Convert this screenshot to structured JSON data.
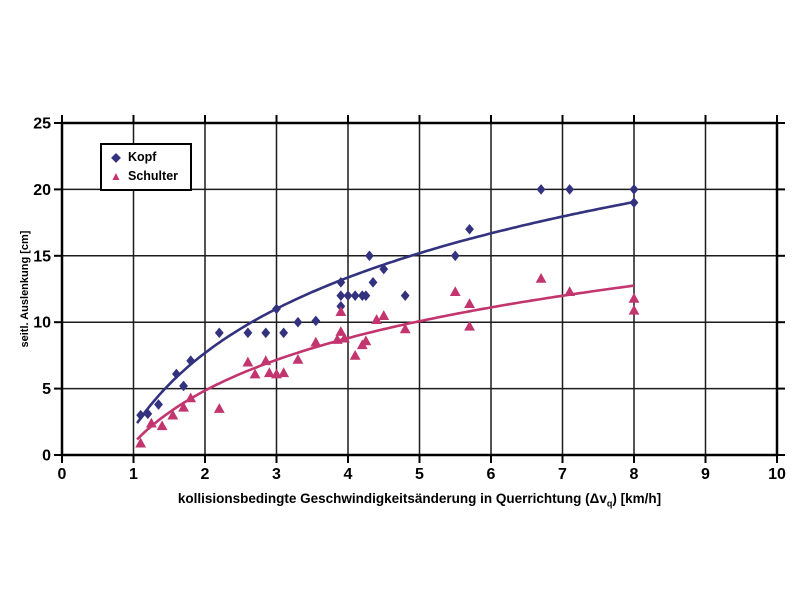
{
  "chart_data": {
    "type": "scatter",
    "title": "",
    "xlabel_prefix": "kollisionsbedingte Geschwindigkeitsänderung in Querrichtung (Δv",
    "xlabel_sub": "q",
    "xlabel_suffix": ") [km/h]",
    "ylabel": "seitl. Auslenkung [cm]",
    "xlim": [
      0,
      10
    ],
    "ylim": [
      0,
      25
    ],
    "x_ticks": [
      0,
      1,
      2,
      3,
      4,
      5,
      6,
      7,
      8,
      9,
      10
    ],
    "y_ticks": [
      0,
      5,
      10,
      15,
      20,
      25
    ],
    "grid": true,
    "grid_color": "#1c1c1c",
    "frame_color": "#000000",
    "legend_position": "top-left",
    "series": [
      {
        "name": "Kopf",
        "marker": "diamond",
        "color": "#32327E",
        "points": [
          [
            1.1,
            3.0
          ],
          [
            1.2,
            3.1
          ],
          [
            1.35,
            3.8
          ],
          [
            1.6,
            6.1
          ],
          [
            1.7,
            5.2
          ],
          [
            1.8,
            7.1
          ],
          [
            2.2,
            9.2
          ],
          [
            2.6,
            9.2
          ],
          [
            2.85,
            9.2
          ],
          [
            3.0,
            11.0
          ],
          [
            3.1,
            9.2
          ],
          [
            3.3,
            10.0
          ],
          [
            3.55,
            10.1
          ],
          [
            3.9,
            13.0
          ],
          [
            3.9,
            12.0
          ],
          [
            3.9,
            11.2
          ],
          [
            4.0,
            12.0
          ],
          [
            4.1,
            12.0
          ],
          [
            4.2,
            12.0
          ],
          [
            4.25,
            12.0
          ],
          [
            4.3,
            15.0
          ],
          [
            4.35,
            13.0
          ],
          [
            4.5,
            14.0
          ],
          [
            4.8,
            12.0
          ],
          [
            5.5,
            15.0
          ],
          [
            5.7,
            17.0
          ],
          [
            6.7,
            20.0
          ],
          [
            7.1,
            20.0
          ],
          [
            8.0,
            20.0
          ],
          [
            8.0,
            19.0
          ]
        ],
        "trend": {
          "type": "log",
          "a": 2.0,
          "b": 8.2,
          "x_min": 1.05,
          "x_max": 8.0
        }
      },
      {
        "name": "Schulter",
        "marker": "triangle",
        "color": "#C2356F",
        "points": [
          [
            1.1,
            0.9
          ],
          [
            1.25,
            2.4
          ],
          [
            1.4,
            2.2
          ],
          [
            1.55,
            3.0
          ],
          [
            1.7,
            3.6
          ],
          [
            1.8,
            4.3
          ],
          [
            2.2,
            3.5
          ],
          [
            2.6,
            7.0
          ],
          [
            2.7,
            6.1
          ],
          [
            2.85,
            7.1
          ],
          [
            2.9,
            6.2
          ],
          [
            3.0,
            6.1
          ],
          [
            3.1,
            6.2
          ],
          [
            3.3,
            7.2
          ],
          [
            3.55,
            8.5
          ],
          [
            3.85,
            8.7
          ],
          [
            3.9,
            9.3
          ],
          [
            3.95,
            8.8
          ],
          [
            3.9,
            10.8
          ],
          [
            4.1,
            7.5
          ],
          [
            4.2,
            8.3
          ],
          [
            4.25,
            8.6
          ],
          [
            4.4,
            10.2
          ],
          [
            4.5,
            10.5
          ],
          [
            4.8,
            9.5
          ],
          [
            5.5,
            12.3
          ],
          [
            5.7,
            11.4
          ],
          [
            5.7,
            9.7
          ],
          [
            6.7,
            13.3
          ],
          [
            7.1,
            12.3
          ],
          [
            8.0,
            11.8
          ],
          [
            8.0,
            10.9
          ]
        ],
        "trend": {
          "type": "log",
          "a": 0.9,
          "b": 5.7,
          "x_min": 1.05,
          "x_max": 8.0
        }
      }
    ]
  }
}
